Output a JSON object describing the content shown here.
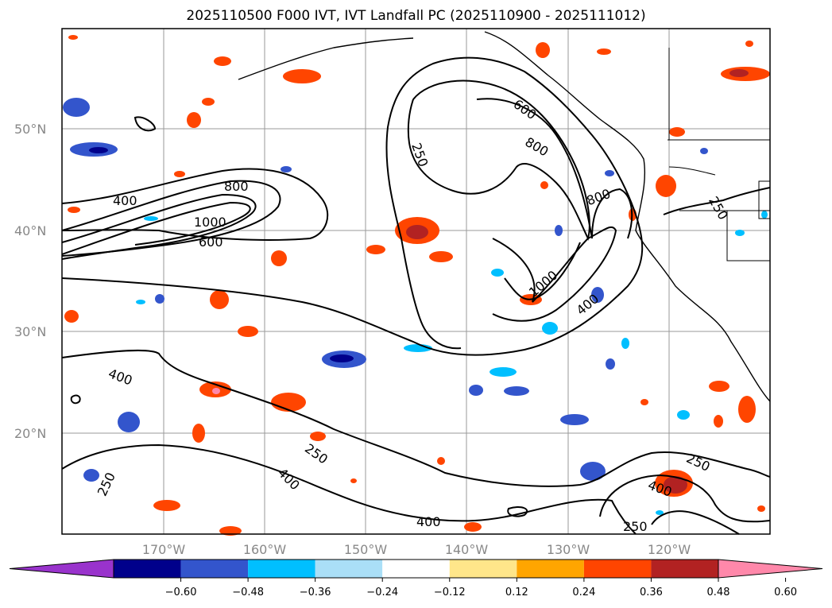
{
  "title": "2025110500 F000 IVT, IVT Landfall PC (2025110900 - 2025111012)",
  "latitude_labels": [
    "50°N",
    "40°N",
    "30°N",
    "20°N"
  ],
  "longitude_labels": [
    "170°W",
    "160°W",
    "150°W",
    "140°W",
    "130°W",
    "120°W"
  ],
  "contour_labels": [
    "400",
    "800",
    "1000",
    "600",
    "250",
    "600",
    "800",
    "800",
    "250",
    "1000",
    "400",
    "400",
    "250",
    "400",
    "250",
    "400",
    "250",
    "400",
    "250"
  ],
  "colorbar": {
    "ticks": [
      "−0.60",
      "−0.48",
      "−0.36",
      "−0.24",
      "−0.12",
      "0.12",
      "0.24",
      "0.36",
      "0.48",
      "0.60"
    ],
    "colors": [
      "#9933cc",
      "#00008b",
      "#3355cc",
      "#00bfff",
      "#aadff7",
      "#ffffff",
      "#ffe68a",
      "#ffa500",
      "#ff4500",
      "#b22222",
      "#ff88aa"
    ]
  },
  "chart_data": {
    "type": "map",
    "title": "2025110500 F000 IVT, IVT Landfall PC (2025110900 - 2025111012)",
    "lat_range": [
      10,
      60
    ],
    "lon_range": [
      -180,
      -110
    ],
    "ivt_contour_levels": [
      250,
      400,
      600,
      800,
      1000
    ],
    "pc_colorbar_ticks": [
      -0.6,
      -0.48,
      -0.36,
      -0.24,
      -0.12,
      0.12,
      0.24,
      0.36,
      0.48,
      0.6
    ]
  }
}
